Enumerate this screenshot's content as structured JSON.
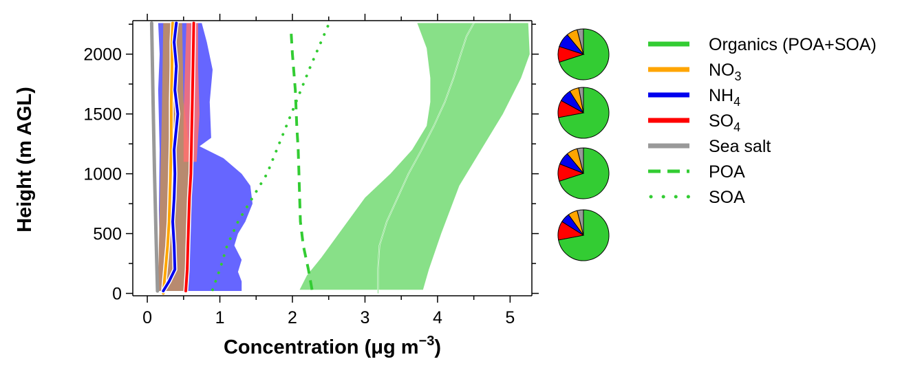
{
  "chart_data": {
    "type": "line",
    "title": "",
    "xlabel": "Concentration (μg m⁻³)",
    "xlabel_parts": {
      "prefix": "Concentration (",
      "unit": "μg m",
      "sup": "−3",
      "suffix": ")"
    },
    "ylabel": "Height (m AGL)",
    "xlim": [
      -0.2,
      5.3
    ],
    "ylim": [
      -20,
      2280
    ],
    "xticks": [
      0,
      1,
      2,
      3,
      4,
      5
    ],
    "xtick_labels": [
      "0",
      "1",
      "2",
      "3",
      "4",
      "5"
    ],
    "yticks": [
      0,
      500,
      1000,
      1500,
      2000
    ],
    "ytick_labels": [
      "0",
      "500",
      "1000",
      "1500",
      "2000"
    ],
    "grid": false,
    "legend_position": "right",
    "series": [
      {
        "key": "org",
        "name": "Organics (POA+SOA)",
        "label": {
          "base": "Organics (POA+SOA)",
          "sub": ""
        },
        "color": "#33cc33",
        "style": "solid",
        "x": [
          3.18,
          3.18,
          3.2,
          3.3,
          3.45,
          3.6,
          3.78,
          3.95,
          4.1,
          4.22,
          4.32,
          4.4,
          4.5
        ],
        "y": [
          0,
          200,
          400,
          600,
          800,
          1000,
          1200,
          1400,
          1600,
          1800,
          2000,
          2150,
          2260
        ]
      },
      {
        "key": "no3",
        "name": "NO3",
        "label": {
          "base": "NO",
          "sub": "3"
        },
        "color": "#ffa500",
        "style": "solid",
        "x": [
          0.22,
          0.25,
          0.28,
          0.3,
          0.31,
          0.32,
          0.33,
          0.33,
          0.34,
          0.34,
          0.35
        ],
        "y": [
          0,
          200,
          400,
          600,
          800,
          1000,
          1300,
          1600,
          1900,
          2100,
          2260
        ]
      },
      {
        "key": "nh4",
        "name": "NH4",
        "label": {
          "base": "NH",
          "sub": "4"
        },
        "color": "#0000ee",
        "style": "solid",
        "x": [
          0.22,
          0.3,
          0.38,
          0.37,
          0.35,
          0.37,
          0.38,
          0.37,
          0.42,
          0.38,
          0.4,
          0.37,
          0.4
        ],
        "y": [
          20,
          100,
          200,
          400,
          600,
          800,
          1000,
          1200,
          1500,
          1700,
          1900,
          2100,
          2260
        ]
      },
      {
        "key": "so4",
        "name": "SO4",
        "label": {
          "base": "SO",
          "sub": "4"
        },
        "color": "#ff0000",
        "style": "solid",
        "x": [
          0.53,
          0.55,
          0.56,
          0.57,
          0.58,
          0.6,
          0.61,
          0.62,
          0.63,
          0.64
        ],
        "y": [
          20,
          200,
          400,
          600,
          800,
          1000,
          1300,
          1600,
          1900,
          2260
        ]
      },
      {
        "key": "ss",
        "name": "Sea salt",
        "label": {
          "base": "Sea salt",
          "sub": ""
        },
        "color": "#999999",
        "style": "solid",
        "x": [
          0.14,
          0.12,
          0.1,
          0.08,
          0.06
        ],
        "y": [
          20,
          500,
          1000,
          1600,
          2260
        ]
      },
      {
        "key": "poa",
        "name": "POA",
        "label": {
          "base": "POA",
          "sub": ""
        },
        "color": "#33cc33",
        "style": "dashed",
        "x": [
          2.27,
          2.22,
          2.15,
          2.11,
          2.1,
          2.09,
          2.08,
          2.06,
          2.04,
          2.0,
          1.98
        ],
        "y": [
          30,
          200,
          400,
          600,
          800,
          1000,
          1200,
          1400,
          1700,
          2000,
          2200
        ]
      },
      {
        "key": "soa",
        "name": "SOA",
        "label": {
          "base": "SOA",
          "sub": ""
        },
        "color": "#33cc33",
        "style": "dotted",
        "x": [
          0.9,
          1.0,
          1.1,
          1.25,
          1.45,
          1.65,
          1.85,
          2.05,
          2.25,
          2.5
        ],
        "y": [
          30,
          200,
          400,
          600,
          800,
          1000,
          1300,
          1600,
          1900,
          2250
        ]
      }
    ],
    "bands": [
      {
        "key": "org_band",
        "color": "#88e088",
        "opacity": 1,
        "left": [
          [
            2.1,
            30
          ],
          [
            2.2,
            150
          ],
          [
            2.4,
            300
          ],
          [
            2.7,
            550
          ],
          [
            3.0,
            800
          ],
          [
            3.35,
            1000
          ],
          [
            3.65,
            1200
          ],
          [
            3.85,
            1400
          ],
          [
            3.9,
            1600
          ],
          [
            3.9,
            1800
          ],
          [
            3.85,
            2050
          ],
          [
            3.72,
            2260
          ]
        ],
        "right": [
          [
            3.8,
            30
          ],
          [
            3.88,
            200
          ],
          [
            4.05,
            500
          ],
          [
            4.3,
            900
          ],
          [
            4.6,
            1200
          ],
          [
            4.9,
            1500
          ],
          [
            5.15,
            1800
          ],
          [
            5.27,
            2000
          ],
          [
            5.25,
            2260
          ]
        ]
      },
      {
        "key": "nh4_band",
        "color": "#6666ff",
        "opacity": 1,
        "left": [
          [
            0.18,
            20
          ],
          [
            0.17,
            300
          ],
          [
            0.16,
            700
          ],
          [
            0.17,
            1200
          ],
          [
            0.15,
            1700
          ],
          [
            0.17,
            2000
          ],
          [
            0.15,
            2260
          ]
        ],
        "right": [
          [
            1.3,
            20
          ],
          [
            1.3,
            100
          ],
          [
            1.25,
            180
          ],
          [
            1.3,
            280
          ],
          [
            1.2,
            400
          ],
          [
            1.25,
            500
          ],
          [
            1.35,
            600
          ],
          [
            1.45,
            750
          ],
          [
            1.42,
            900
          ],
          [
            1.3,
            1000
          ],
          [
            1.05,
            1130
          ],
          [
            0.72,
            1230
          ],
          [
            0.88,
            1300
          ],
          [
            0.86,
            1600
          ],
          [
            0.9,
            1870
          ],
          [
            0.82,
            2100
          ],
          [
            0.75,
            2260
          ]
        ]
      },
      {
        "key": "no3_band",
        "color": "#b88a6f",
        "opacity": 1,
        "left": [
          [
            0.15,
            20
          ],
          [
            0.16,
            400
          ],
          [
            0.18,
            1000
          ],
          [
            0.2,
            1500
          ],
          [
            0.22,
            2260
          ]
        ],
        "right": [
          [
            0.52,
            20
          ],
          [
            0.58,
            300
          ],
          [
            0.6,
            700
          ],
          [
            0.58,
            1200
          ],
          [
            0.5,
            1600
          ],
          [
            0.48,
            2260
          ]
        ]
      },
      {
        "key": "so4_band",
        "color": "#ff7070",
        "opacity": 0.85,
        "left": [
          [
            0.5,
            1100
          ],
          [
            0.5,
            1500
          ],
          [
            0.52,
            1900
          ],
          [
            0.54,
            2260
          ]
        ],
        "right": [
          [
            0.68,
            1100
          ],
          [
            0.72,
            1500
          ],
          [
            0.7,
            1900
          ],
          [
            0.7,
            2260
          ]
        ]
      }
    ],
    "pies": [
      {
        "name": "pie-1",
        "values": [
          {
            "key": "org",
            "v": 70
          },
          {
            "key": "so4",
            "v": 10
          },
          {
            "key": "nh4",
            "v": 9
          },
          {
            "key": "no3",
            "v": 7
          },
          {
            "key": "ss",
            "v": 4
          }
        ]
      },
      {
        "name": "pie-2",
        "values": [
          {
            "key": "org",
            "v": 72
          },
          {
            "key": "so4",
            "v": 11
          },
          {
            "key": "nh4",
            "v": 8
          },
          {
            "key": "no3",
            "v": 6
          },
          {
            "key": "ss",
            "v": 3
          }
        ]
      },
      {
        "name": "pie-3",
        "values": [
          {
            "key": "org",
            "v": 70
          },
          {
            "key": "so4",
            "v": 11
          },
          {
            "key": "nh4",
            "v": 8
          },
          {
            "key": "no3",
            "v": 7
          },
          {
            "key": "ss",
            "v": 4
          }
        ]
      },
      {
        "name": "pie-4",
        "values": [
          {
            "key": "org",
            "v": 72
          },
          {
            "key": "so4",
            "v": 12
          },
          {
            "key": "nh4",
            "v": 6
          },
          {
            "key": "no3",
            "v": 6
          },
          {
            "key": "ss",
            "v": 4
          }
        ]
      }
    ]
  }
}
